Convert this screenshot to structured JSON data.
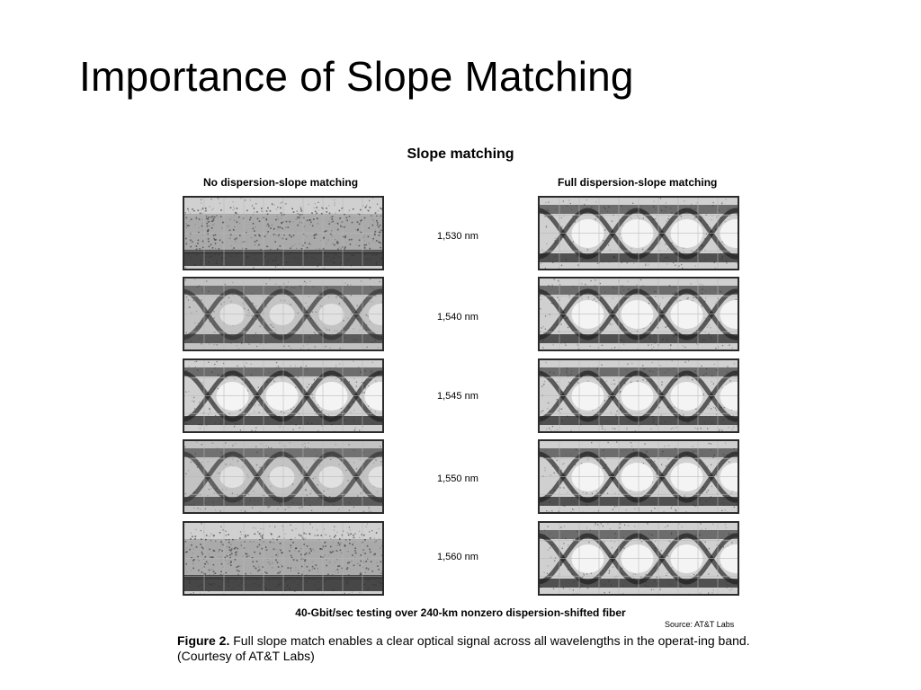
{
  "slide": {
    "title": "Importance of Slope Matching"
  },
  "figure": {
    "title": "Slope matching",
    "left_header": "No dispersion-slope matching",
    "right_header": "Full dispersion-slope matching",
    "wavelengths": [
      "1,530 nm",
      "1,540 nm",
      "1,545 nm",
      "1,550 nm",
      "1,560 nm"
    ],
    "test_caption": "40-Gbit/sec testing over 240-km nonzero dispersion-shifted fiber",
    "source": "Source: AT&T Labs",
    "caption_label": "Figure 2.",
    "caption_text": "Full slope match enables a clear optical signal across all wavelengths in the operat-ing band. (Courtesy of AT&T Labs)"
  },
  "eye_diagrams": {
    "no_slope_matching": [
      "closed",
      "partially open",
      "open",
      "partially open",
      "closed"
    ],
    "full_slope_matching": [
      "open",
      "open",
      "open",
      "open",
      "open"
    ]
  },
  "colors": {
    "trace_dark": "#1a1a1a",
    "background_noise": "#d0d0d0",
    "eye_opening": "#f4f4f4",
    "grid": "#b8b8b8"
  }
}
